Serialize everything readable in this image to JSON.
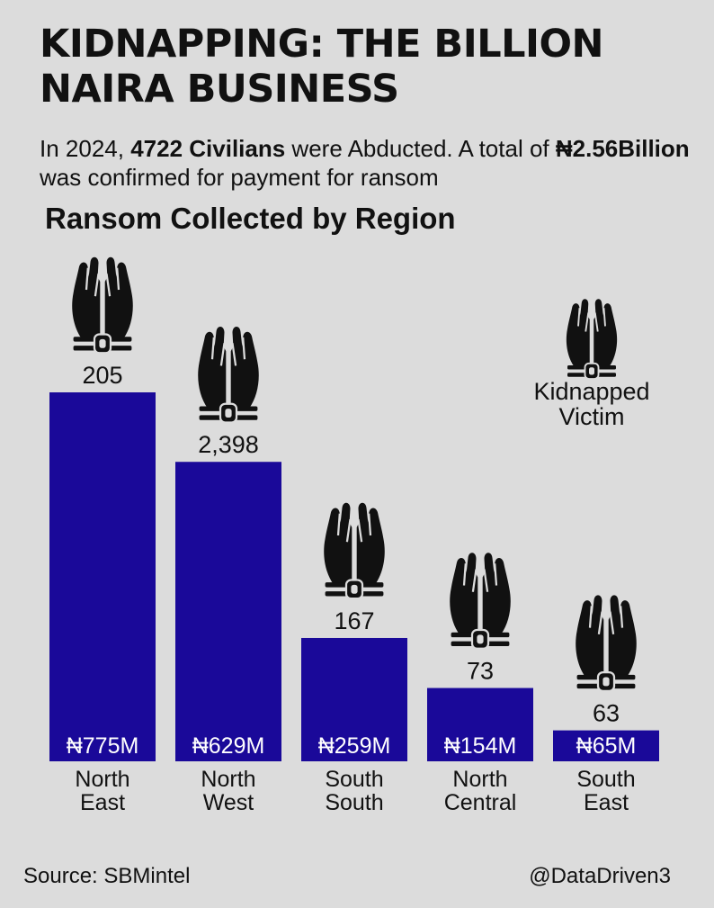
{
  "header": {
    "title_line1": "KIDNAPPING: THE BILLION",
    "title_line2": "NAIRA BUSINESS"
  },
  "subtitle": {
    "part1": "In 2024, ",
    "bold1": "4722 Civilians",
    "part2": " were Abducted. A total of ",
    "bold2": "₦2.56Billion",
    "part3": " was confirmed for payment for ransom"
  },
  "chart_title": "Ransom Collected by Region",
  "legend": {
    "icon": "bound-hands-icon",
    "line1": "Kidnapped",
    "line2": "Victim"
  },
  "colors": {
    "bar": "#1a0999",
    "background": "#dcdcdc",
    "text": "#111111"
  },
  "chart_data": {
    "type": "bar",
    "title": "Ransom Collected by Region",
    "categories": [
      [
        "North",
        "East"
      ],
      [
        "North",
        "West"
      ],
      [
        "South",
        "South"
      ],
      [
        "North",
        "Central"
      ],
      [
        "South",
        "East"
      ]
    ],
    "series": [
      {
        "values": [
          775,
          629,
          259,
          154,
          65
        ],
        "value_labels": [
          "₦775M",
          "₦629M",
          "₦259M",
          "₦154M",
          "₦65M"
        ]
      }
    ],
    "victims": [
      "205",
      "2,398",
      "167",
      "73",
      "63"
    ],
    "ylim": [
      0,
      775
    ],
    "grid": false,
    "legend": "right"
  },
  "footer": {
    "source": "Source: SBMintel",
    "handle": "@DataDriven3"
  }
}
